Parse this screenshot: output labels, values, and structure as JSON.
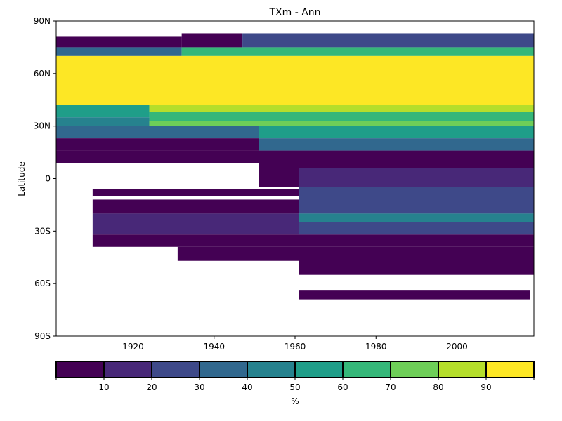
{
  "chart_data": {
    "type": "heatmap",
    "title": "TXm - Ann",
    "ylabel": "Latitude",
    "xlabel": "",
    "xlim": [
      1901,
      2019
    ],
    "ylim": [
      -90,
      90
    ],
    "x_ticks": [
      1920,
      1940,
      1960,
      1980,
      2000
    ],
    "y_ticks": [
      {
        "value": 90,
        "label": "90N"
      },
      {
        "value": 60,
        "label": "60N"
      },
      {
        "value": 30,
        "label": "30N"
      },
      {
        "value": 0,
        "label": "0"
      },
      {
        "value": -30,
        "label": "30S"
      },
      {
        "value": -60,
        "label": "60S"
      },
      {
        "value": -90,
        "label": "90S"
      }
    ],
    "colorbar": {
      "label": "%",
      "bins": [
        0,
        10,
        20,
        30,
        40,
        50,
        60,
        70,
        80,
        90,
        100
      ],
      "tick_labels": [
        "10",
        "20",
        "30",
        "40",
        "50",
        "60",
        "70",
        "80",
        "90"
      ],
      "colors": [
        "#440154",
        "#482878",
        "#3e4989",
        "#31688e",
        "#26828e",
        "#1f9e89",
        "#35b779",
        "#6ece58",
        "#b5de2b",
        "#fde725"
      ]
    },
    "cells": [
      {
        "x0": 1901,
        "x1": 1932,
        "lat0": 75,
        "lat1": 81,
        "v": 5
      },
      {
        "x0": 1932,
        "x1": 1947,
        "lat0": 75,
        "lat1": 83,
        "v": 5
      },
      {
        "x0": 1947,
        "x1": 2019,
        "lat0": 75,
        "lat1": 83,
        "v": 25
      },
      {
        "x0": 1901,
        "x1": 1932,
        "lat0": 70,
        "lat1": 75,
        "v": 35
      },
      {
        "x0": 1932,
        "x1": 2019,
        "lat0": 70,
        "lat1": 75,
        "v": 65
      },
      {
        "x0": 1901,
        "x1": 2019,
        "lat0": 42,
        "lat1": 70,
        "v": 95
      },
      {
        "x0": 1901,
        "x1": 1924,
        "lat0": 35,
        "lat1": 42,
        "v": 55
      },
      {
        "x0": 1924,
        "x1": 2019,
        "lat0": 38,
        "lat1": 42,
        "v": 85
      },
      {
        "x0": 1924,
        "x1": 2019,
        "lat0": 33,
        "lat1": 38,
        "v": 65
      },
      {
        "x0": 1901,
        "x1": 1924,
        "lat0": 30,
        "lat1": 35,
        "v": 45
      },
      {
        "x0": 1924,
        "x1": 2019,
        "lat0": 30,
        "lat1": 33,
        "v": 75
      },
      {
        "x0": 1901,
        "x1": 1951,
        "lat0": 23,
        "lat1": 30,
        "v": 35
      },
      {
        "x0": 1951,
        "x1": 2019,
        "lat0": 23,
        "lat1": 30,
        "v": 55
      },
      {
        "x0": 1901,
        "x1": 1951,
        "lat0": 16,
        "lat1": 23,
        "v": 5
      },
      {
        "x0": 1951,
        "x1": 2019,
        "lat0": 16,
        "lat1": 23,
        "v": 35
      },
      {
        "x0": 1901,
        "x1": 1951,
        "lat0": 9,
        "lat1": 16,
        "v": 5
      },
      {
        "x0": 1951,
        "x1": 2019,
        "lat0": 6,
        "lat1": 16,
        "v": 5
      },
      {
        "x0": 1951,
        "x1": 1961,
        "lat0": -5,
        "lat1": 6,
        "v": 5
      },
      {
        "x0": 1961,
        "x1": 2019,
        "lat0": -5,
        "lat1": 6,
        "v": 15
      },
      {
        "x0": 1961,
        "x1": 2019,
        "lat0": -14,
        "lat1": -5,
        "v": 25
      },
      {
        "x0": 1910,
        "x1": 1961,
        "lat0": -10,
        "lat1": -6,
        "v": 5
      },
      {
        "x0": 1910,
        "x1": 1961,
        "lat0": -20,
        "lat1": -12,
        "v": 5
      },
      {
        "x0": 1910,
        "x1": 1961,
        "lat0": -32,
        "lat1": -20,
        "v": 15
      },
      {
        "x0": 1910,
        "x1": 1961,
        "lat0": -39,
        "lat1": -32,
        "v": 5
      },
      {
        "x0": 1961,
        "x1": 2019,
        "lat0": -20,
        "lat1": -14,
        "v": 25
      },
      {
        "x0": 1961,
        "x1": 2019,
        "lat0": -25,
        "lat1": -20,
        "v": 45
      },
      {
        "x0": 1961,
        "x1": 2019,
        "lat0": -32,
        "lat1": -25,
        "v": 25
      },
      {
        "x0": 1961,
        "x1": 2019,
        "lat0": -39,
        "lat1": -32,
        "v": 5
      },
      {
        "x0": 1931,
        "x1": 1961,
        "lat0": -47,
        "lat1": -39,
        "v": 5
      },
      {
        "x0": 1961,
        "x1": 2019,
        "lat0": -55,
        "lat1": -39,
        "v": 5
      },
      {
        "x0": 1961,
        "x1": 2018,
        "lat0": -69,
        "lat1": -64,
        "v": 5
      }
    ]
  }
}
